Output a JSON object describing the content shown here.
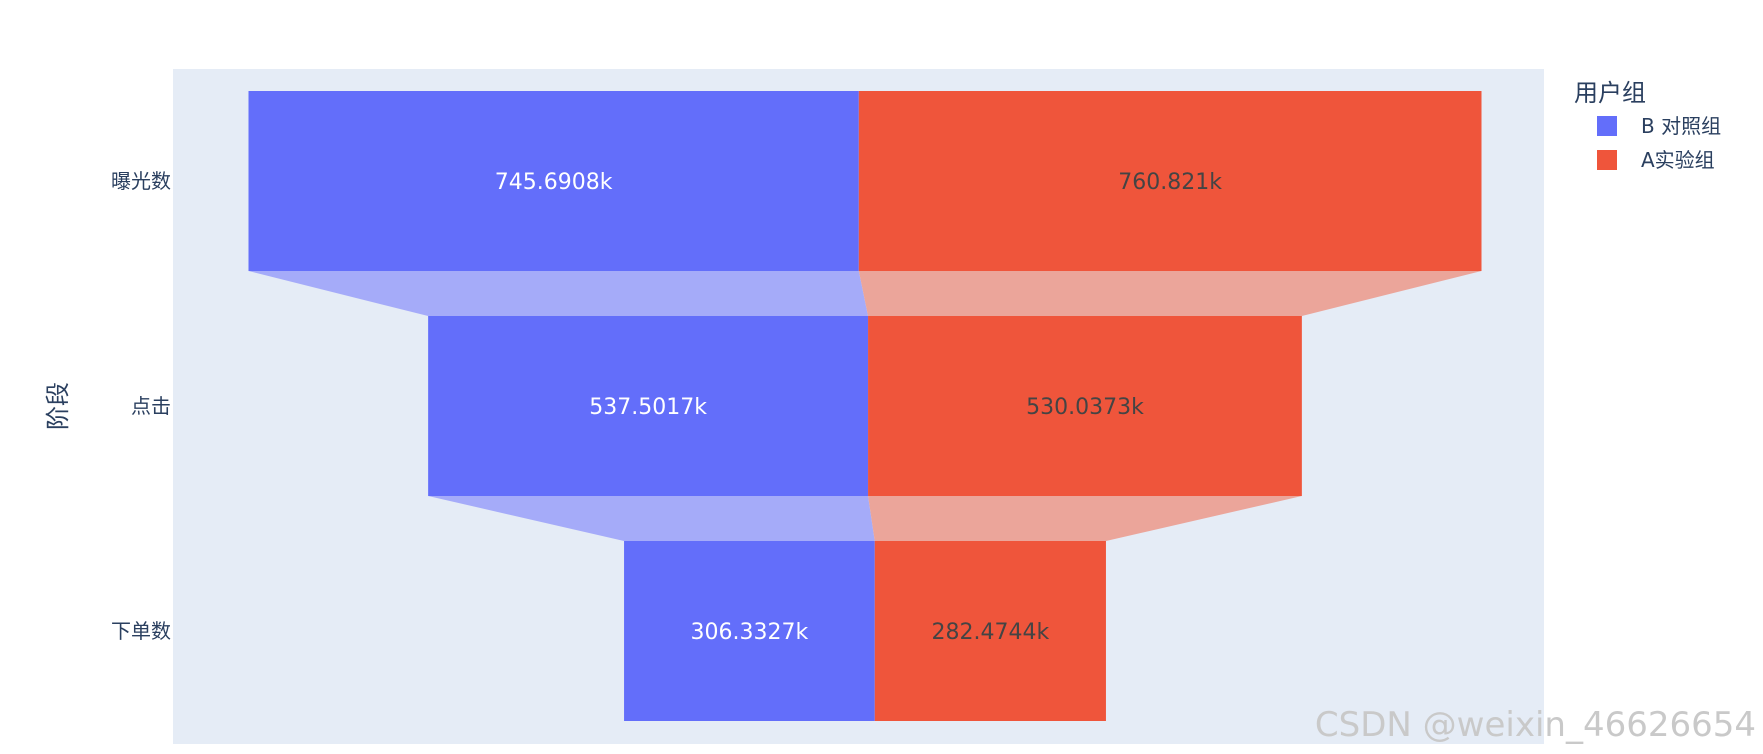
{
  "chart_data": {
    "type": "funnel",
    "categories": [
      "曝光数",
      "点击",
      "下单数"
    ],
    "series": [
      {
        "name": "B 对照组",
        "color": "#636efa",
        "values": [
          745690.8,
          537501.7,
          306332.7
        ],
        "labels": [
          "745.6908k",
          "537.5017k",
          "306.3327k"
        ],
        "label_color": "#ffffff"
      },
      {
        "name": "A实验组",
        "color": "#ef553b",
        "values": [
          760821,
          530037.3,
          282474.4
        ],
        "labels": [
          "760.821k",
          "530.0373k",
          "282.4744k"
        ],
        "label_color": "#444444"
      }
    ],
    "ylabel": "阶段",
    "legend_title": "用户组",
    "legend_position": "top-right",
    "plot_bgcolor": "#e5ecf6",
    "grid": false
  },
  "watermark": "CSDN @weixin_46626654"
}
